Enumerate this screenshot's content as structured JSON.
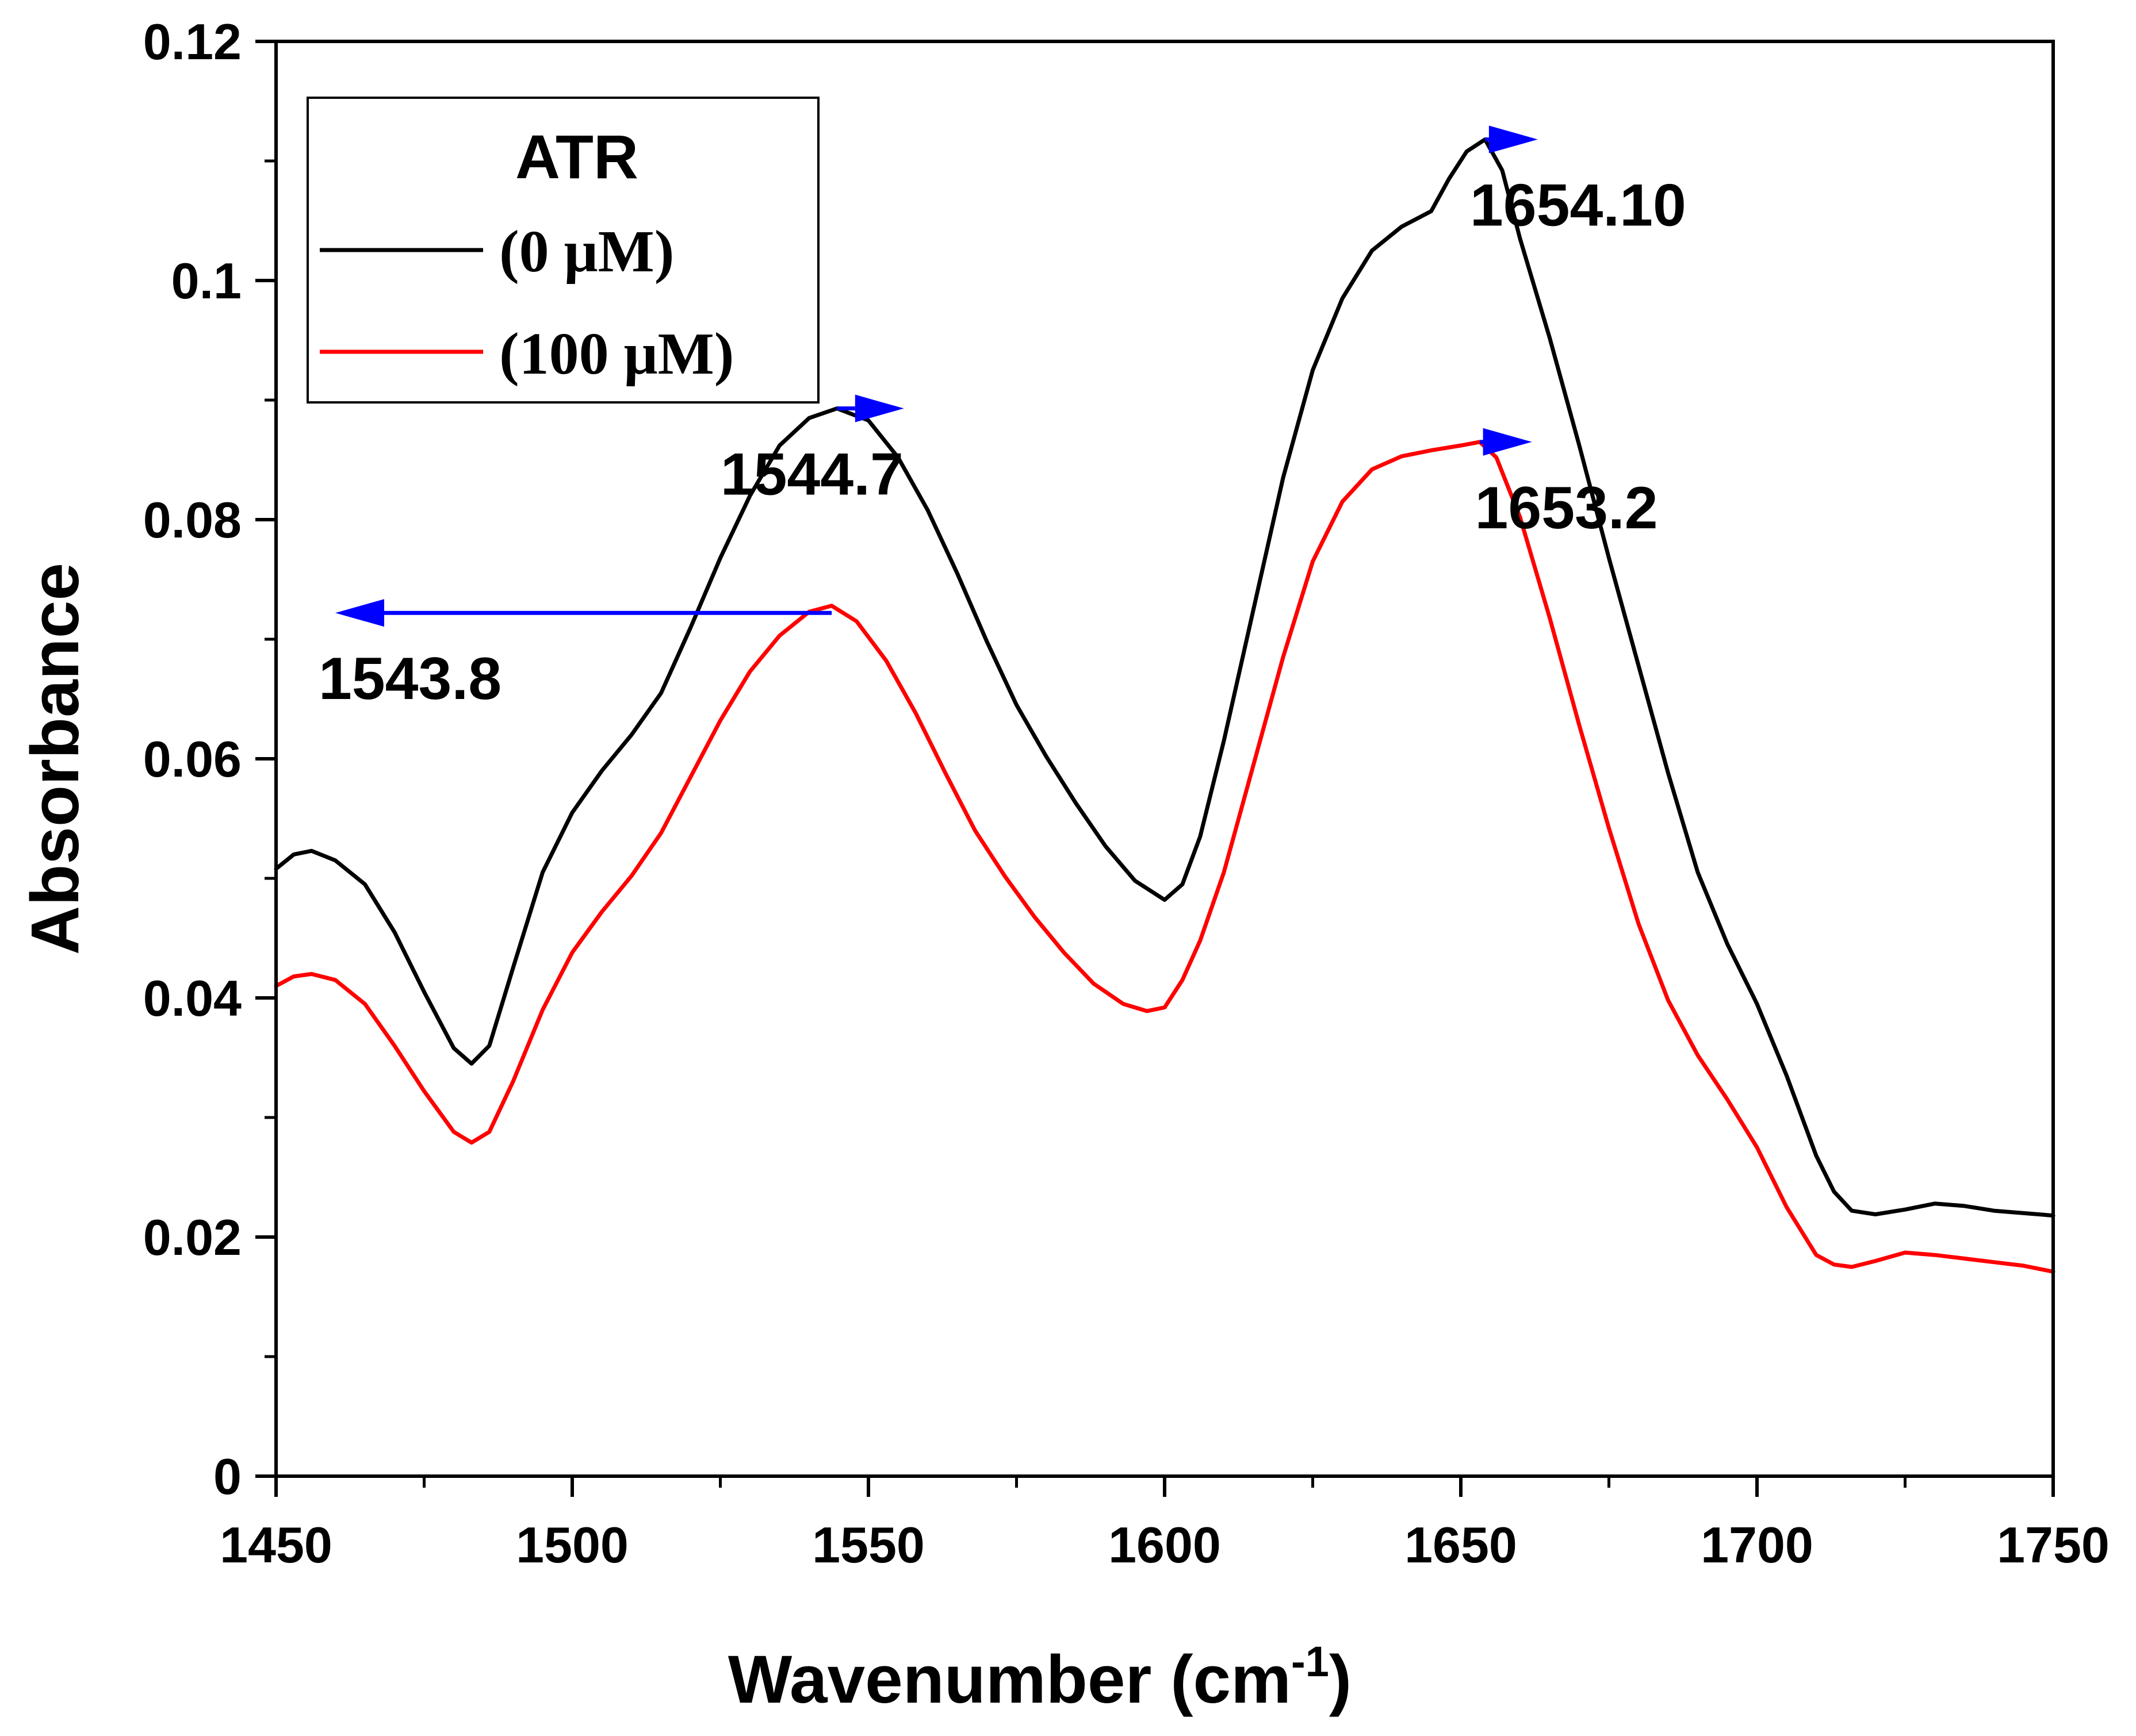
{
  "chart_data": {
    "type": "line",
    "xlabel": "Wavenumber (cm",
    "xlabel_sup": "-1",
    "xlabel_close": ")",
    "ylabel": "Absorbance",
    "xlim": [
      1450,
      1750
    ],
    "ylim": [
      0,
      0.12
    ],
    "x_ticks": [
      1450,
      1500,
      1550,
      1600,
      1650,
      1700,
      1750
    ],
    "x_tick_labels": [
      "1450",
      "1500",
      "1550",
      "1600",
      "1650",
      "1700",
      "1750"
    ],
    "y_ticks": [
      0,
      0.02,
      0.04,
      0.06,
      0.08,
      0.1,
      0.12
    ],
    "y_tick_labels": [
      "0",
      "0.02",
      "0.04",
      "0.06",
      "0.08",
      "0.1",
      "0.12"
    ],
    "x_minor_step": 25,
    "y_minor_step": 0.01,
    "legend": {
      "title": "ATR",
      "position": "top-left"
    },
    "series": [
      {
        "name": "(0 μM)",
        "color": "#000000",
        "x": [
          1450,
          1453,
          1456,
          1460,
          1465,
          1470,
          1475,
          1480,
          1483,
          1486,
          1490,
          1495,
          1500,
          1505,
          1510,
          1515,
          1520,
          1525,
          1530,
          1535,
          1540,
          1544.7,
          1550,
          1555,
          1560,
          1565,
          1570,
          1575,
          1580,
          1585,
          1590,
          1595,
          1600,
          1603,
          1606,
          1610,
          1615,
          1620,
          1625,
          1630,
          1635,
          1640,
          1645,
          1648,
          1651,
          1654.1,
          1657,
          1660,
          1665,
          1670,
          1675,
          1680,
          1685,
          1690,
          1695,
          1700,
          1705,
          1710,
          1713,
          1716,
          1720,
          1725,
          1730,
          1735,
          1740,
          1745,
          1750
        ],
        "y": [
          0.0508,
          0.052,
          0.0523,
          0.0515,
          0.0495,
          0.0455,
          0.0405,
          0.0358,
          0.0345,
          0.036,
          0.0425,
          0.0505,
          0.0555,
          0.059,
          0.062,
          0.0655,
          0.071,
          0.0768,
          0.082,
          0.0862,
          0.0885,
          0.0893,
          0.0883,
          0.0852,
          0.0808,
          0.0755,
          0.0698,
          0.0645,
          0.0602,
          0.0563,
          0.0527,
          0.0498,
          0.0482,
          0.0495,
          0.0535,
          0.0615,
          0.0725,
          0.0835,
          0.0925,
          0.0985,
          0.1025,
          0.1045,
          0.1058,
          0.1085,
          0.1108,
          0.1118,
          0.1092,
          0.1035,
          0.0952,
          0.0862,
          0.0768,
          0.0678,
          0.0588,
          0.0505,
          0.0445,
          0.0395,
          0.0335,
          0.0268,
          0.0238,
          0.0222,
          0.0219,
          0.0223,
          0.0228,
          0.0226,
          0.0222,
          0.022,
          0.0218
        ]
      },
      {
        "name": "(100 μM)",
        "color": "#ff0000",
        "x": [
          1450,
          1453,
          1456,
          1460,
          1465,
          1470,
          1475,
          1480,
          1483,
          1486,
          1490,
          1495,
          1500,
          1505,
          1510,
          1515,
          1520,
          1525,
          1530,
          1535,
          1540,
          1543.8,
          1548,
          1553,
          1558,
          1563,
          1568,
          1573,
          1578,
          1583,
          1588,
          1593,
          1597,
          1600,
          1603,
          1606,
          1610,
          1615,
          1620,
          1625,
          1630,
          1635,
          1640,
          1645,
          1650,
          1653.2,
          1656,
          1660,
          1665,
          1670,
          1675,
          1680,
          1685,
          1690,
          1695,
          1700,
          1705,
          1710,
          1713,
          1716,
          1720,
          1725,
          1730,
          1735,
          1740,
          1745,
          1750
        ],
        "y": [
          0.041,
          0.0418,
          0.042,
          0.0415,
          0.0395,
          0.036,
          0.0322,
          0.0288,
          0.0279,
          0.0288,
          0.033,
          0.039,
          0.0438,
          0.0472,
          0.0502,
          0.0538,
          0.0585,
          0.0632,
          0.0673,
          0.0703,
          0.0723,
          0.0728,
          0.0715,
          0.0682,
          0.0638,
          0.0588,
          0.054,
          0.0502,
          0.0468,
          0.0438,
          0.0412,
          0.0395,
          0.0389,
          0.0392,
          0.0415,
          0.0448,
          0.0505,
          0.0595,
          0.0685,
          0.0765,
          0.0815,
          0.0842,
          0.0853,
          0.0858,
          0.0862,
          0.0865,
          0.0852,
          0.0802,
          0.0718,
          0.0628,
          0.0542,
          0.0462,
          0.0398,
          0.0352,
          0.0315,
          0.0275,
          0.0225,
          0.0185,
          0.0177,
          0.0175,
          0.018,
          0.0187,
          0.0185,
          0.0182,
          0.0179,
          0.0176,
          0.0171
        ]
      }
    ],
    "annotations": [
      {
        "text": "1654.10",
        "x_from": 1654.1,
        "x_to": 1663,
        "y": 0.1118
      },
      {
        "text": "1544.7",
        "x_from": 1544.7,
        "x_to": 1556,
        "y": 0.0893
      },
      {
        "text": "1653.2",
        "x_from": 1653.2,
        "x_to": 1662,
        "y": 0.0865
      },
      {
        "text": "1543.8",
        "x_from": 1543.8,
        "x_to": 1460,
        "y": 0.0722
      }
    ],
    "arrow_color": "#0000ff",
    "grid": false
  }
}
